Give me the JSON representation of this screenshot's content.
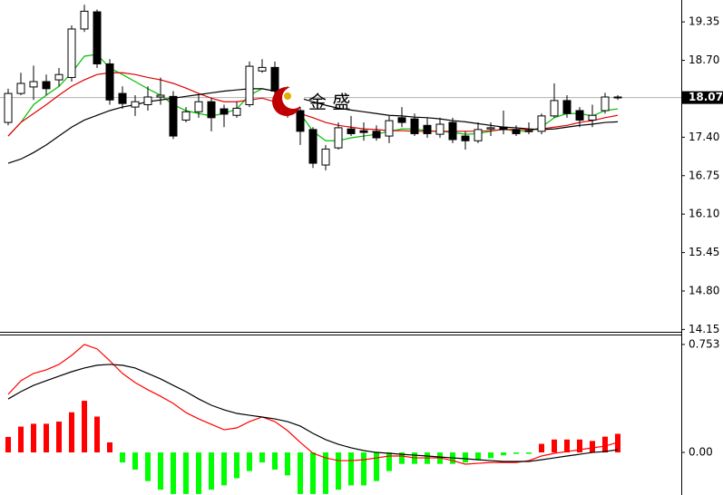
{
  "chart_data": [
    {
      "type": "candlestick",
      "watermark": "金 盛",
      "last_price": 18.07,
      "ylim": [
        14.11,
        19.72
      ],
      "yticks": [
        19.35,
        {
          "value": 18.7,
          "label": "18.70"
        },
        {
          "value": 17.4,
          "label": "17.40"
        },
        16.75,
        {
          "value": 16.1,
          "label": "16.10"
        },
        15.45,
        {
          "value": 14.8,
          "label": "14.80"
        },
        14.15
      ],
      "up_color": "#ffffff",
      "down_color": "#000000",
      "open": [
        17.65,
        18.14,
        18.25,
        18.34,
        18.37,
        18.41,
        19.23,
        19.52,
        18.64,
        18.14,
        17.91,
        17.95,
        18.08,
        18.09,
        17.69,
        17.83,
        18.0,
        17.88,
        17.77,
        17.95,
        18.52,
        18.58,
        18.18,
        17.85,
        17.53,
        16.93,
        17.22,
        17.54,
        17.51,
        17.5,
        17.42,
        17.73,
        17.71,
        17.6,
        17.45,
        17.65,
        17.42,
        17.34,
        17.54,
        17.57,
        17.53,
        17.51,
        17.5,
        17.76,
        18.02,
        17.85,
        17.69,
        17.85,
        18.08
      ],
      "high": [
        18.22,
        18.49,
        18.61,
        18.46,
        18.57,
        19.29,
        19.64,
        19.56,
        18.72,
        18.26,
        18.11,
        18.26,
        18.41,
        18.18,
        17.91,
        18.11,
        18.06,
        17.95,
        18.0,
        18.68,
        18.72,
        18.68,
        18.26,
        17.91,
        17.57,
        17.27,
        17.65,
        17.76,
        17.65,
        17.6,
        17.76,
        17.91,
        17.8,
        17.73,
        17.73,
        17.73,
        17.5,
        17.65,
        17.65,
        17.85,
        17.6,
        17.65,
        17.8,
        18.31,
        18.11,
        17.91,
        17.95,
        18.15,
        18.11
      ],
      "low": [
        17.6,
        18.11,
        18.03,
        18.11,
        18.26,
        18.34,
        19.18,
        18.57,
        17.95,
        17.88,
        17.76,
        17.85,
        17.95,
        17.37,
        17.65,
        17.73,
        17.5,
        17.57,
        17.73,
        17.91,
        18.49,
        18.11,
        17.73,
        17.27,
        16.88,
        16.84,
        17.19,
        17.42,
        17.34,
        17.34,
        17.3,
        17.57,
        17.42,
        17.39,
        17.39,
        17.3,
        17.19,
        17.3,
        17.42,
        17.45,
        17.42,
        17.45,
        17.45,
        17.73,
        17.73,
        17.57,
        17.57,
        17.8,
        18.03
      ],
      "close": [
        18.14,
        18.31,
        18.34,
        18.22,
        18.46,
        19.23,
        19.53,
        18.64,
        18.03,
        17.97,
        18.0,
        18.08,
        18.11,
        17.42,
        17.83,
        18.0,
        17.73,
        17.79,
        17.89,
        18.6,
        18.58,
        18.18,
        17.8,
        17.5,
        16.96,
        17.2,
        17.56,
        17.46,
        17.48,
        17.39,
        17.68,
        17.65,
        17.46,
        17.46,
        17.62,
        17.36,
        17.34,
        17.53,
        17.56,
        17.53,
        17.46,
        17.5,
        17.76,
        18.02,
        17.8,
        17.69,
        17.77,
        18.08,
        18.07
      ],
      "series": [
        {
          "color": "#00c000",
          "values": [
            17.42,
            17.65,
            17.95,
            18.11,
            18.26,
            18.49,
            18.77,
            18.8,
            18.57,
            18.46,
            18.34,
            18.22,
            18.11,
            17.95,
            17.85,
            17.8,
            17.76,
            17.8,
            17.88,
            18.11,
            18.22,
            18.18,
            18.03,
            17.8,
            17.5,
            17.34,
            17.34,
            17.39,
            17.42,
            17.45,
            17.5,
            17.54,
            17.54,
            17.51,
            17.5,
            17.48,
            17.45,
            17.46,
            17.5,
            17.54,
            17.5,
            17.5,
            17.57,
            17.73,
            17.8,
            17.8,
            17.76,
            17.85,
            17.88
          ]
        },
        {
          "color": "#e00000",
          "values": [
            17.42,
            17.65,
            17.8,
            17.95,
            18.11,
            18.26,
            18.37,
            18.46,
            18.49,
            18.49,
            18.46,
            18.41,
            18.37,
            18.31,
            18.23,
            18.14,
            18.06,
            18.0,
            18.0,
            18.03,
            18.06,
            18.0,
            17.91,
            17.8,
            17.73,
            17.65,
            17.6,
            17.57,
            17.54,
            17.53,
            17.51,
            17.51,
            17.5,
            17.5,
            17.5,
            17.5,
            17.5,
            17.5,
            17.51,
            17.53,
            17.53,
            17.53,
            17.54,
            17.57,
            17.6,
            17.65,
            17.68,
            17.73,
            17.77
          ]
        },
        {
          "color": "#000000",
          "values": [
            16.96,
            17.03,
            17.14,
            17.27,
            17.42,
            17.57,
            17.69,
            17.77,
            17.85,
            17.91,
            17.95,
            18.0,
            18.03,
            18.06,
            18.09,
            18.12,
            18.15,
            18.18,
            18.2,
            18.22,
            18.22,
            18.18,
            18.12,
            18.06,
            18.0,
            17.94,
            17.89,
            17.86,
            17.83,
            17.8,
            17.77,
            17.76,
            17.74,
            17.73,
            17.71,
            17.68,
            17.66,
            17.63,
            17.6,
            17.57,
            17.56,
            17.54,
            17.53,
            17.54,
            17.57,
            17.6,
            17.62,
            17.65,
            17.66
          ]
        }
      ]
    },
    {
      "type": "macd",
      "ylim": [
        -0.297,
        0.816
      ],
      "yticks": [
        0.753,
        {
          "value": 0,
          "label": "0.00"
        }
      ],
      "up_color": "#ff0000",
      "down_color": "#00ff00",
      "values": [
        0.108,
        0.18,
        0.2,
        0.2,
        0.215,
        0.28,
        0.36,
        0.25,
        0.07,
        -0.07,
        -0.12,
        -0.2,
        -0.26,
        -0.29,
        -0.29,
        -0.29,
        -0.26,
        -0.23,
        -0.18,
        -0.13,
        -0.07,
        -0.12,
        -0.16,
        -0.29,
        -0.29,
        -0.29,
        -0.26,
        -0.23,
        -0.23,
        -0.2,
        -0.13,
        -0.08,
        -0.08,
        -0.08,
        -0.08,
        -0.08,
        -0.07,
        -0.05,
        -0.04,
        -0.02,
        -0.01,
        -0.01,
        0.06,
        0.09,
        0.09,
        0.09,
        0.08,
        0.11,
        0.13
      ],
      "series": [
        {
          "color": "#ff0000",
          "values": [
            0.405,
            0.5,
            0.551,
            0.576,
            0.614,
            0.677,
            0.753,
            0.722,
            0.639,
            0.551,
            0.487,
            0.437,
            0.392,
            0.342,
            0.278,
            0.234,
            0.196,
            0.158,
            0.171,
            0.215,
            0.247,
            0.215,
            0.152,
            0.07,
            -0.006,
            -0.038,
            -0.057,
            -0.057,
            -0.051,
            -0.038,
            -0.025,
            -0.025,
            -0.038,
            -0.038,
            -0.038,
            -0.057,
            -0.082,
            -0.076,
            -0.07,
            -0.07,
            -0.07,
            -0.057,
            -0.025,
            -0.006,
            0.006,
            0.019,
            0.032,
            0.044,
            0.07
          ]
        },
        {
          "color": "#000000",
          "values": [
            0.373,
            0.424,
            0.468,
            0.5,
            0.532,
            0.563,
            0.589,
            0.608,
            0.614,
            0.608,
            0.589,
            0.551,
            0.513,
            0.468,
            0.424,
            0.373,
            0.329,
            0.297,
            0.272,
            0.259,
            0.247,
            0.234,
            0.215,
            0.184,
            0.133,
            0.089,
            0.057,
            0.032,
            0.013,
            0,
            -0.006,
            -0.013,
            -0.019,
            -0.025,
            -0.032,
            -0.038,
            -0.044,
            -0.051,
            -0.057,
            -0.063,
            -0.063,
            -0.063,
            -0.051,
            -0.038,
            -0.025,
            -0.013,
            0,
            0.006,
            0.019
          ]
        }
      ]
    }
  ]
}
